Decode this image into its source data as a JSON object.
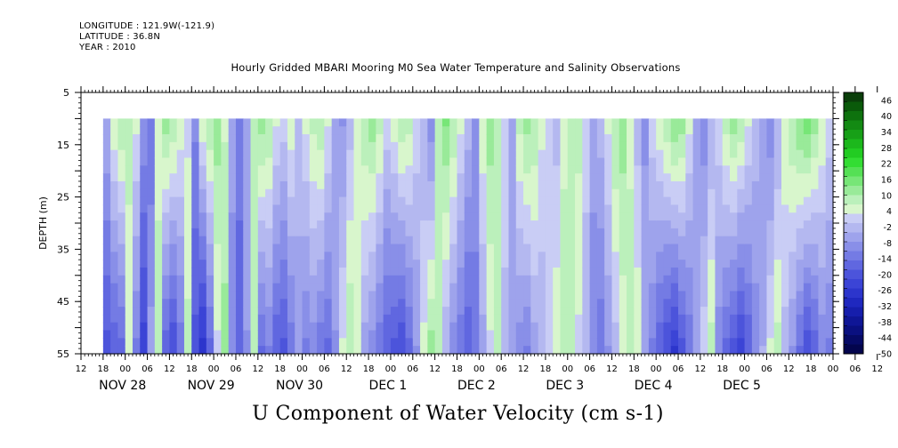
{
  "header": {
    "longitude": "LONGITUDE : 121.9W(-121.9)",
    "latitude": "LATITUDE : 36.8N",
    "year": "YEAR : 2010"
  },
  "chart_data": {
    "type": "heatmap",
    "title": "Hourly Gridded MBARI Mooring M0 Sea Water Temperature and Salinity Observations",
    "xlabel": "U Component of Water Velocity (cm s-1)",
    "ylabel": "DEPTH (m)",
    "ylim": [
      5,
      55
    ],
    "y_inverted": true,
    "y_ticks": [
      5,
      15,
      25,
      35,
      45,
      55
    ],
    "x_hour_ticks": [
      "12",
      "18",
      "00",
      "06",
      "12",
      "18",
      "00",
      "06",
      "12",
      "18",
      "00",
      "06",
      "12",
      "18",
      "00",
      "06",
      "12",
      "18",
      "00",
      "06",
      "12",
      "18",
      "00",
      "06",
      "12",
      "18",
      "00",
      "06",
      "12",
      "18",
      "00",
      "06",
      "12",
      "18",
      "00",
      "06",
      "12"
    ],
    "x_day_labels": [
      "NOV 28",
      "NOV 29",
      "NOV 30",
      "DEC  1",
      "DEC  2",
      "DEC  3",
      "DEC  4",
      "DEC  5"
    ],
    "x_range_hours": [
      12,
      216
    ],
    "data_range": {
      "x_start_hour": 18,
      "x_end_hour": 216,
      "depth_top": 10,
      "depth_bottom": 55
    },
    "colorbar": {
      "labels": [
        "46",
        "40",
        "34",
        "28",
        "22",
        "16",
        "10",
        "4",
        "-2",
        "-8",
        "-14",
        "-20",
        "-26",
        "-32",
        "-38",
        "-44",
        "-50"
      ],
      "colors": [
        "#0a3e0a",
        "#0a5a0a",
        "#0e720e",
        "#138a13",
        "#17a017",
        "#1cb81c",
        "#22cc22",
        "#33dd33",
        "#55e055",
        "#77e677",
        "#99ea99",
        "#bbf0bb",
        "#d8f6cc",
        "#c9cdf5",
        "#b4b8f0",
        "#9ea3ec",
        "#898fe8",
        "#747be4",
        "#6067e0",
        "#4c54db",
        "#3b44d6",
        "#2c35cc",
        "#1f28bf",
        "#161eac",
        "#0f1696",
        "#0a1080",
        "#060a66",
        "#03054d"
      ]
    },
    "column_profile_hours": [
      18,
      20,
      22,
      24,
      26,
      28,
      30,
      32,
      34,
      36,
      38,
      40,
      42,
      44,
      46,
      48,
      50,
      52,
      54,
      56,
      58,
      60,
      62,
      64,
      66,
      68,
      70,
      72,
      74,
      76,
      78,
      80,
      82,
      84,
      86,
      88,
      90,
      92,
      94,
      96,
      98,
      100,
      102,
      104,
      106,
      108,
      110,
      112,
      114,
      116,
      118,
      120,
      122,
      124,
      126,
      128,
      130,
      132,
      134,
      136,
      138,
      140,
      142,
      144,
      146,
      148,
      150,
      152,
      154,
      156,
      158,
      160,
      162,
      164,
      166,
      168,
      170,
      172,
      174,
      176,
      178,
      180,
      182,
      184,
      186,
      188,
      190,
      192,
      194,
      196,
      198,
      200,
      202,
      204,
      206,
      208,
      210,
      212,
      214,
      216
    ],
    "column_profile_surface": [
      -4,
      6,
      10,
      8,
      4,
      -8,
      -14,
      4,
      12,
      10,
      6,
      2,
      -10,
      6,
      10,
      12,
      6,
      -6,
      -12,
      -4,
      8,
      12,
      10,
      4,
      2,
      6,
      -2,
      4,
      8,
      10,
      4,
      -4,
      -8,
      -2,
      6,
      10,
      12,
      8,
      2,
      6,
      10,
      8,
      2,
      -4,
      -10,
      8,
      14,
      10,
      4,
      -2,
      -10,
      6,
      12,
      10,
      2,
      -6,
      8,
      12,
      10,
      4,
      2,
      -2,
      6,
      10,
      8,
      2,
      -6,
      -2,
      4,
      10,
      12,
      6,
      -2,
      -8,
      2,
      6,
      10,
      14,
      12,
      4,
      -6,
      -10,
      -4,
      2,
      8,
      12,
      10,
      4,
      -2,
      -6,
      -10,
      -4,
      6,
      10,
      14,
      16,
      12,
      6,
      2,
      -2
    ],
    "column_profile_bottom": [
      -20,
      -18,
      -16,
      4,
      -12,
      -24,
      -6,
      10,
      -18,
      -22,
      -14,
      8,
      -20,
      -28,
      -16,
      2,
      12,
      -10,
      -18,
      -8,
      10,
      -16,
      -12,
      -18,
      -20,
      -14,
      -6,
      -12,
      -10,
      -14,
      -16,
      -8,
      4,
      10,
      6,
      -6,
      -10,
      -14,
      -18,
      -20,
      -22,
      -16,
      -8,
      4,
      12,
      8,
      -4,
      -10,
      -14,
      -18,
      -12,
      -6,
      2,
      8,
      -2,
      -6,
      -10,
      -12,
      -6,
      -4,
      2,
      6,
      8,
      10,
      2,
      -4,
      -10,
      -14,
      -8,
      -2,
      4,
      8,
      6,
      -6,
      -12,
      -18,
      -22,
      -26,
      -20,
      -14,
      -6,
      2,
      8,
      -10,
      -16,
      -20,
      -24,
      -18,
      -10,
      -4,
      4,
      8,
      -2,
      -8,
      -16,
      -22,
      -18,
      -10,
      -12,
      -14
    ]
  }
}
